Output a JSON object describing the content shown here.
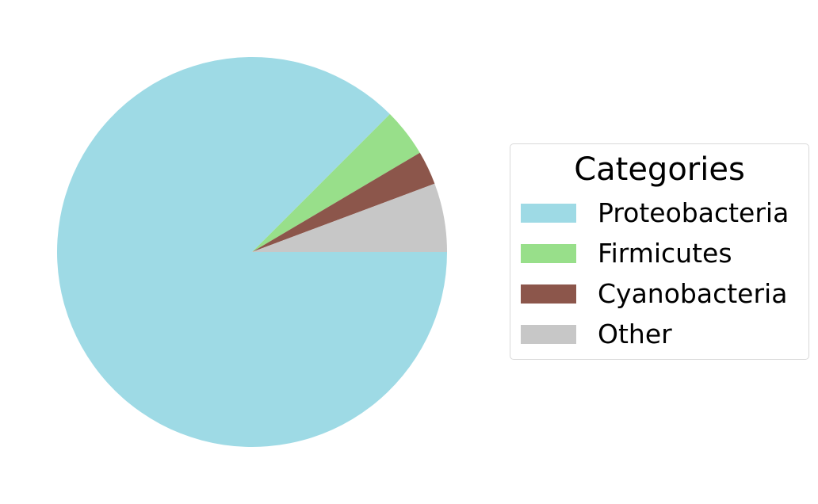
{
  "chart_data": {
    "type": "pie",
    "slices": [
      {
        "label": "Proteobacteria",
        "value": 87.5,
        "color": "#9edae5"
      },
      {
        "label": "Firmicutes",
        "value": 4.0,
        "color": "#98df8a"
      },
      {
        "label": "Cyanobacteria",
        "value": 2.8,
        "color": "#8c564b"
      },
      {
        "label": "Other",
        "value": 5.7,
        "color": "#c7c7c7"
      }
    ],
    "direction": "clockwise",
    "start_angle_deg": 0,
    "legend": {
      "title": "Categories",
      "placement": "right"
    }
  }
}
